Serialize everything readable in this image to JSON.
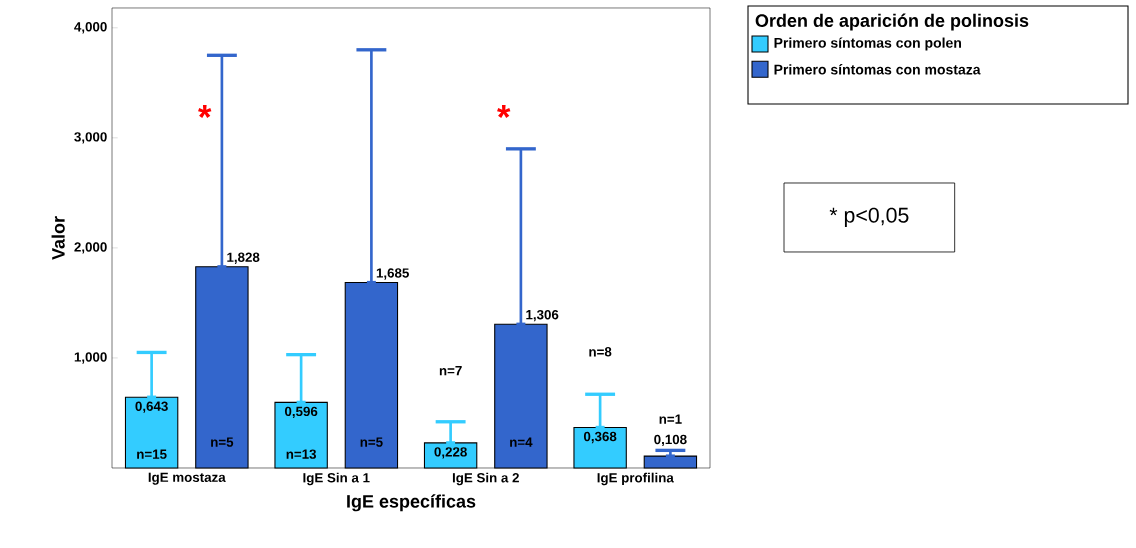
{
  "chart_data": {
    "type": "bar",
    "xlabel": "IgE específicas",
    "ylabel": "Valor",
    "legend_title": "Orden de aparición de polinosis",
    "legend": "top right",
    "categories": [
      "IgE mostaza",
      "IgE Sin a 1",
      "IgE Sin a 2",
      "IgE profilina"
    ],
    "series": [
      {
        "name": "Primero síntomas con polen",
        "color": "#33ccff",
        "values": [
          0.643,
          0.596,
          0.228,
          0.368
        ],
        "value_labels": [
          "0,643",
          "0,596",
          "0,228",
          "0,368"
        ],
        "errors": [
          [
            0.643,
            1.05
          ],
          [
            0.596,
            1.03
          ],
          [
            0.228,
            0.42
          ],
          [
            0.368,
            0.67
          ]
        ]
      },
      {
        "name": "Primero síntomas con mostaza",
        "color": "#3366cc",
        "values": [
          1.828,
          1.685,
          1.306,
          0.108
        ],
        "value_labels": [
          "1,828",
          "1,685",
          "1,306",
          "0,108"
        ],
        "errors": [
          [
            1.828,
            3.75
          ],
          [
            1.685,
            3.8
          ],
          [
            1.306,
            2.9
          ],
          [
            0.108,
            0.16
          ]
        ]
      }
    ],
    "ylim": [
      0,
      4.18
    ],
    "yticks": [
      {
        "value": 1,
        "label": "1,000"
      },
      {
        "value": 2,
        "label": "2,000"
      },
      {
        "value": 3,
        "label": "3,000"
      },
      {
        "value": 4,
        "label": "4,000"
      }
    ],
    "grid": false,
    "annotations": [
      "n=15",
      "n=5",
      "*",
      "n=13",
      "n=5",
      "n=7",
      "n=4",
      "*",
      "n=8",
      "n=1",
      "* p<0,05"
    ]
  }
}
